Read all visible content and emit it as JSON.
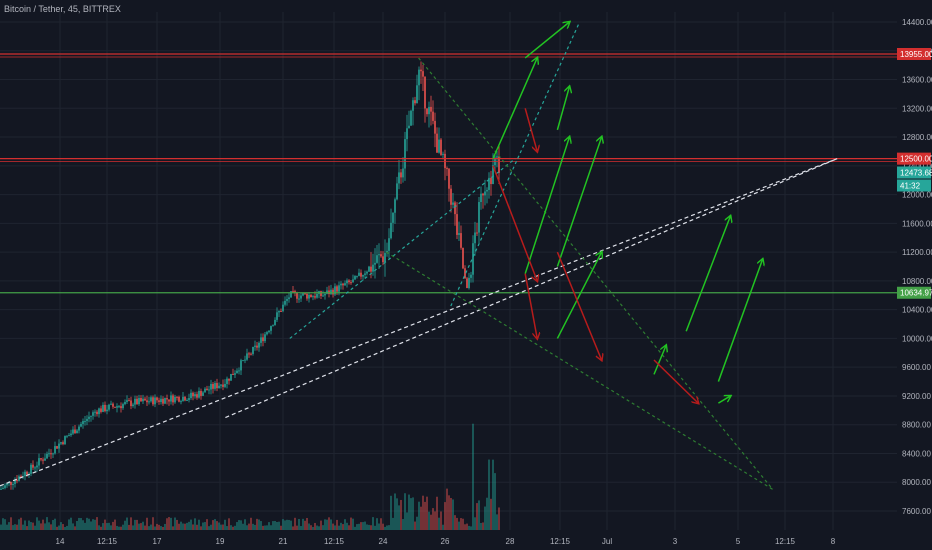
{
  "title": "Bitcoin / Tether, 45, BITTREX",
  "colors": {
    "background": "#131722",
    "grid": "#1f2430",
    "candle_up": "#26a69a",
    "candle_down": "#ef5350",
    "resistance": "#d32f2f",
    "support": "#43a047",
    "current": "#26a69a",
    "green_arrow": "#22c322",
    "red_arrow": "#b71c1c",
    "dashed_white": "#e0e3eb",
    "dashed_teal": "#26a69a",
    "dashed_green": "#2e7d32"
  },
  "chart_data": {
    "type": "candlestick",
    "symbol": "Bitcoin / Tether",
    "interval": "45",
    "exchange": "BITTREX",
    "y_ticks": [
      "14400.00",
      "14000.00",
      "13600.00",
      "13200.00",
      "12800.00",
      "12400.00",
      "12000.00",
      "11600.00",
      "11200.00",
      "10800.00",
      "10400.00",
      "10000.00",
      "9600.00",
      "9200.00",
      "8800.00",
      "8400.00",
      "8000.00",
      "7600.00"
    ],
    "x_ticks": [
      "14",
      "12:15",
      "17",
      "19",
      "21",
      "12:15",
      "24",
      "26",
      "28",
      "12:15",
      "Jul",
      "3",
      "5",
      "12:15",
      "8"
    ],
    "ylim": [
      7300,
      14700
    ],
    "price_series": [
      [
        "Jun 13",
        7900
      ],
      [
        "Jun 14",
        8200
      ],
      [
        "Jun 15",
        8600
      ],
      [
        "Jun 16",
        9000
      ],
      [
        "Jun 17",
        9100
      ],
      [
        "Jun 18",
        9150
      ],
      [
        "Jun 19",
        9200
      ],
      [
        "Jun 20",
        9400
      ],
      [
        "Jun 21",
        9900
      ],
      [
        "Jun 22",
        10600
      ],
      [
        "Jun 23",
        10600
      ],
      [
        "Jun 24",
        10800
      ],
      [
        "Jun 25",
        11200
      ],
      [
        "Jun 26",
        13700
      ],
      [
        "Jun 27",
        12000
      ],
      [
        "Jun 27 late",
        10650
      ],
      [
        "Jun 28",
        12100
      ],
      [
        "Jun 28 late",
        12474
      ]
    ],
    "horizontal_levels": [
      {
        "value": 13955.0,
        "label": "13955.00",
        "color": "#d32f2f"
      },
      {
        "value": 12500.0,
        "label": "12500.00",
        "color": "#d32f2f"
      },
      {
        "value": 10634.97,
        "label": "10634.97",
        "color": "#43a047"
      }
    ],
    "current_price": {
      "label": "12473.68",
      "timer": "41:32"
    },
    "trendlines_white": [
      [
        [
          "Jun 13",
          7950
        ],
        [
          "Jul 9",
          12500
        ]
      ],
      [
        [
          "Jun 20",
          8900
        ],
        [
          "Jul 9",
          12500
        ]
      ]
    ],
    "trendlines_teal": [
      [
        [
          "Jun 27",
          10450
        ],
        [
          "Jul 1",
          14400
        ]
      ],
      [
        [
          "Jun 22",
          10000
        ],
        [
          "Jun 29",
          12500
        ]
      ]
    ],
    "trendlines_green_dashed": [
      [
        [
          "Jun 26",
          13900
        ],
        [
          "Jul 7",
          7900
        ]
      ],
      [
        [
          "Jun 25",
          11200
        ],
        [
          "Jul 7",
          7900
        ]
      ]
    ],
    "green_arrows": [
      [
        [
          "Jun 28",
          12500
        ],
        [
          "Jun 29",
          13900
        ]
      ],
      [
        [
          "Jun 29",
          13900
        ],
        [
          "Jun 30",
          14400
        ]
      ],
      [
        [
          "Jun 30",
          12900
        ],
        [
          "Jun 30",
          13500
        ]
      ],
      [
        [
          "Jun 29",
          10900
        ],
        [
          "Jun 30",
          12800
        ]
      ],
      [
        [
          "Jun 30",
          11000
        ],
        [
          "Jul 1",
          12800
        ]
      ],
      [
        [
          "Jun 30",
          10000
        ],
        [
          "Jul 1",
          11200
        ]
      ],
      [
        [
          "Jul 4",
          10100
        ],
        [
          "Jul 5",
          11700
        ]
      ],
      [
        [
          "Jul 5",
          9400
        ],
        [
          "Jul 6",
          11100
        ]
      ],
      [
        [
          "Jul 3",
          9500
        ],
        [
          "Jul 3",
          9900
        ]
      ],
      [
        [
          "Jul 5",
          9100
        ],
        [
          "Jul 5",
          9200
        ]
      ]
    ],
    "red_arrows": [
      [
        [
          "Jun 29",
          13200
        ],
        [
          "Jun 29",
          12600
        ]
      ],
      [
        [
          "Jun 28",
          12400
        ],
        [
          "Jun 29",
          10800
        ]
      ],
      [
        [
          "Jun 29",
          10900
        ],
        [
          "Jun 29",
          10000
        ]
      ],
      [
        [
          "Jun 30",
          11200
        ],
        [
          "Jul 1",
          9700
        ]
      ],
      [
        [
          "Jul 3",
          9700
        ],
        [
          "Jul 4",
          9100
        ]
      ]
    ]
  }
}
